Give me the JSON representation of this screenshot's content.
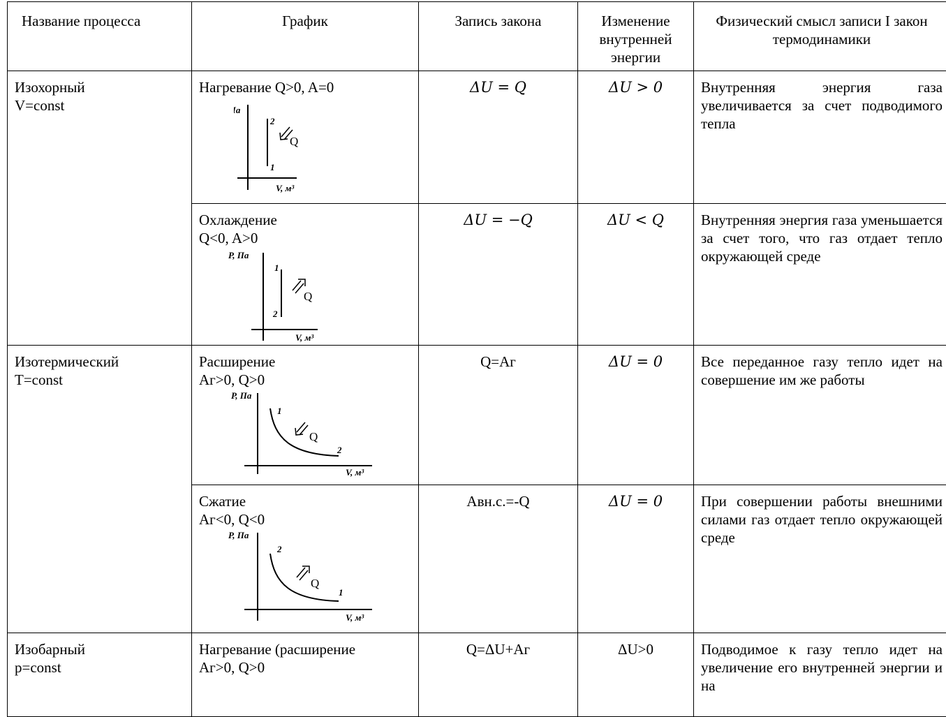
{
  "headers": {
    "process": "Название процесса",
    "graph": "График",
    "law": "Запись закона",
    "energy": "Изменение внутренней энергии",
    "meaning": "Физический смысл записи I закон термодинамики"
  },
  "rows": [
    {
      "process_name": "Изохорный",
      "process_cond": "V=const",
      "cases": [
        {
          "title_line1": "Нагревание Q>0, A=0",
          "title_line2": "",
          "law": "ΔU = Q",
          "energy": "ΔU > 0",
          "meaning": "Внутренняя энергия газа увеличивается за счет подводимого тепла",
          "plot": {
            "ylabel": "P, Па",
            "xlabel": "V, м³",
            "pt_top": "2",
            "pt_bottom": "1",
            "q": "Q"
          }
        },
        {
          "title_line1": "Охлаждение",
          "title_line2": "Q<0, A>0",
          "law": "ΔU = −Q",
          "energy": "ΔU < Q",
          "meaning": "Внутренняя энергия газа уменьшается за счет того, что газ отдает тепло окружающей среде",
          "plot": {
            "ylabel": "P, Па",
            "xlabel": "V, м³",
            "pt_top": "1",
            "pt_bottom": "2",
            "q": "Q"
          }
        }
      ]
    },
    {
      "process_name": "Изотермический",
      "process_cond": "T=const",
      "cases": [
        {
          "title_line1": "Расширение",
          "title_line2": "Aг>0, Q>0",
          "law": "Q=Aг",
          "energy": "ΔU = 0",
          "meaning": "Все переданное газу тепло идет на совершение им же работы",
          "plot": {
            "ylabel": "P, Па",
            "xlabel": "V, м³",
            "pt_start": "1",
            "pt_end": "2",
            "q": "Q"
          }
        },
        {
          "title_line1": "Сжатие",
          "title_line2": "Aг<0, Q<0",
          "law": "Aвн.с.=-Q",
          "energy": "ΔU = 0",
          "meaning": "При совершении работы внешними силами газ отдает тепло окружающей среде",
          "plot": {
            "ylabel": "P, Па",
            "xlabel": "V, м³",
            "pt_start": "2",
            "pt_end": "1",
            "q": "Q"
          }
        }
      ]
    },
    {
      "process_name": "Изобарный",
      "process_cond": "p=const",
      "cases": [
        {
          "title_line1": "Нагревание (расширение",
          "title_line2": "Aг>0, Q>0",
          "law": "Q=ΔU+Aг",
          "energy": "ΔU>0",
          "meaning": "Подводимое к газу тепло идет на увеличение его внутренней энергии и на"
        }
      ]
    }
  ]
}
